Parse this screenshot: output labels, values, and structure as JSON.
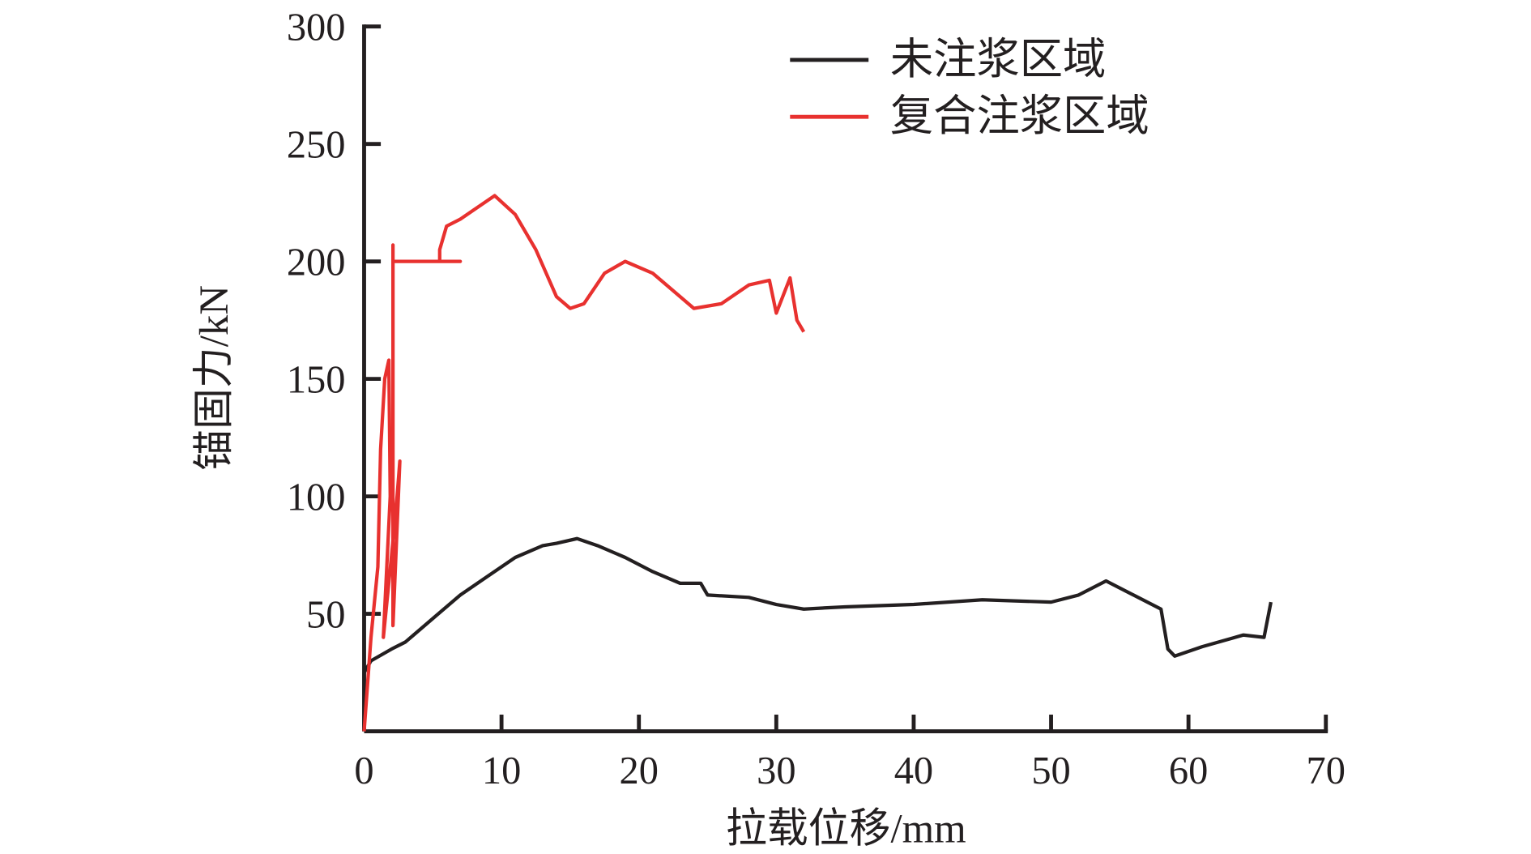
{
  "chart_data": {
    "type": "line",
    "title": "",
    "xlabel": "拉载位移/mm",
    "ylabel": "锚固力/kN",
    "xlim": [
      0,
      70
    ],
    "ylim": [
      0,
      300
    ],
    "xticks": [
      "0",
      "10",
      "20",
      "30",
      "40",
      "50",
      "60",
      "70"
    ],
    "yticks": [
      "50",
      "100",
      "150",
      "200",
      "250",
      "300"
    ],
    "grid": false,
    "legend_position": "top-right",
    "series": [
      {
        "name": "未注浆区域",
        "color": "#231f20",
        "points": [
          [
            0,
            0
          ],
          [
            0,
            25
          ],
          [
            0.5,
            30
          ],
          [
            2,
            35
          ],
          [
            3,
            38
          ],
          [
            5,
            48
          ],
          [
            7,
            58
          ],
          [
            9,
            66
          ],
          [
            11,
            74
          ],
          [
            13,
            79
          ],
          [
            14,
            80
          ],
          [
            15.5,
            82
          ],
          [
            17,
            79
          ],
          [
            19,
            74
          ],
          [
            21,
            68
          ],
          [
            23,
            63
          ],
          [
            24.5,
            63
          ],
          [
            25,
            58
          ],
          [
            28,
            57
          ],
          [
            30,
            54
          ],
          [
            32,
            52
          ],
          [
            35,
            53
          ],
          [
            40,
            54
          ],
          [
            45,
            56
          ],
          [
            50,
            55
          ],
          [
            52,
            58
          ],
          [
            54,
            64
          ],
          [
            56,
            58
          ],
          [
            58,
            52
          ],
          [
            58.5,
            35
          ],
          [
            59,
            32
          ],
          [
            61,
            36
          ],
          [
            64,
            41
          ],
          [
            65.5,
            40
          ],
          [
            66,
            55
          ]
        ]
      },
      {
        "name": "复合注浆区域",
        "color": "#e8312f",
        "points": [
          [
            0,
            0
          ],
          [
            0.5,
            40
          ],
          [
            1,
            70
          ],
          [
            1.2,
            120
          ],
          [
            1.5,
            150
          ],
          [
            1.8,
            158
          ],
          [
            1.9,
            100
          ],
          [
            1.4,
            40
          ],
          [
            2.0,
            75
          ],
          [
            2.4,
            100
          ],
          [
            2.6,
            115
          ],
          [
            2.1,
            45
          ],
          [
            2.1,
            207
          ],
          [
            2.1,
            200
          ],
          [
            7,
            200
          ],
          [
            5.5,
            200
          ],
          [
            5.5,
            205
          ],
          [
            6,
            215
          ],
          [
            7,
            218
          ],
          [
            8,
            222
          ],
          [
            9.5,
            228
          ],
          [
            11,
            220
          ],
          [
            12.5,
            205
          ],
          [
            14,
            185
          ],
          [
            15,
            180
          ],
          [
            16,
            182
          ],
          [
            17.5,
            195
          ],
          [
            19,
            200
          ],
          [
            21,
            195
          ],
          [
            23,
            185
          ],
          [
            24,
            180
          ],
          [
            26,
            182
          ],
          [
            28,
            190
          ],
          [
            29.5,
            192
          ],
          [
            30,
            178
          ],
          [
            31,
            193
          ],
          [
            31.5,
            175
          ],
          [
            32,
            170
          ]
        ]
      }
    ]
  }
}
